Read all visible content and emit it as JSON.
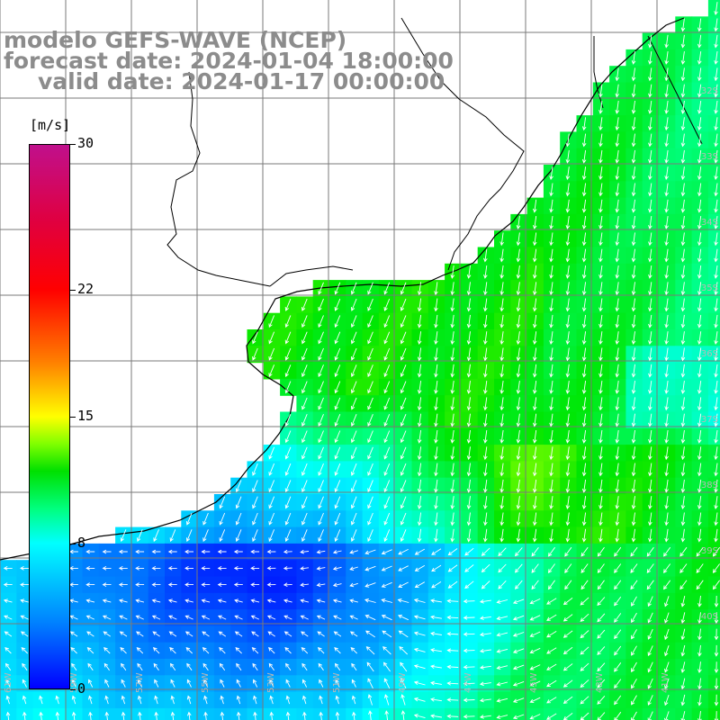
{
  "title": {
    "line1": "modelo GEFS-WAVE (NCEP)",
    "line2": "forecast date: 2024-01-04 18:00:00",
    "line3": "valid date: 2024-01-17 00:00:00"
  },
  "colorbar": {
    "unit": "[m/s]",
    "ticks": [
      {
        "value": 30,
        "label": "30"
      },
      {
        "value": 22,
        "label": "22"
      },
      {
        "value": 15,
        "label": "15"
      },
      {
        "value": 8,
        "label": "8"
      },
      {
        "value": 0,
        "label": "0"
      }
    ],
    "vmin": 0,
    "vmax": 30
  },
  "map": {
    "lon_labels": [
      "61W",
      "59W",
      "57W",
      "55W",
      "53W",
      "51W",
      "49W",
      "47W",
      "45W",
      "43W",
      "41W"
    ],
    "lat_labels": [
      "32S",
      "33S",
      "34S",
      "35S",
      "36S",
      "37S",
      "38S",
      "39S",
      "40S"
    ],
    "vector_color": "#ffffff",
    "grid_color": "#7a7a7a",
    "coast_color": "#000000"
  }
}
